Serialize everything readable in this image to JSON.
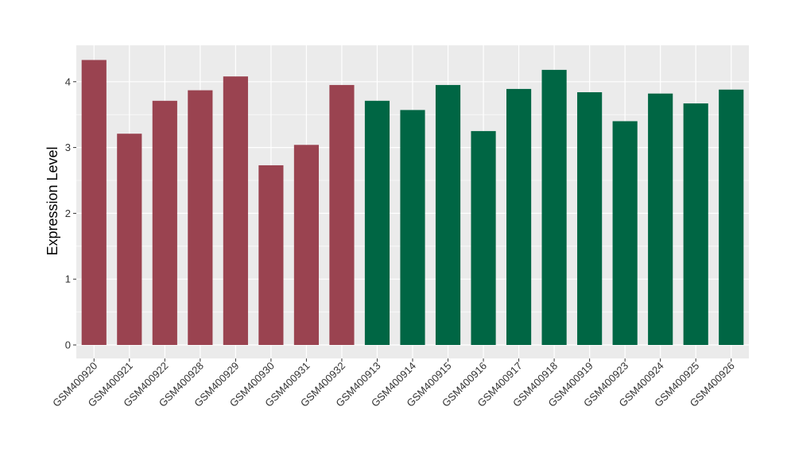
{
  "chart_data": {
    "type": "bar",
    "title": "",
    "xlabel": "",
    "ylabel": "Expression Level",
    "ylim": [
      0,
      4.5
    ],
    "yticks": [
      0,
      1,
      2,
      3,
      4
    ],
    "grid": true,
    "legend": "none",
    "colors": {
      "group1": "#9a4350",
      "group2": "#006644",
      "panel": "#ebebeb",
      "grid": "#ffffff"
    },
    "categories": [
      "GSM400920",
      "GSM400921",
      "GSM400922",
      "GSM400928",
      "GSM400929",
      "GSM400930",
      "GSM400931",
      "GSM400932",
      "GSM400913",
      "GSM400914",
      "GSM400915",
      "GSM400916",
      "GSM400917",
      "GSM400918",
      "GSM400919",
      "GSM400923",
      "GSM400924",
      "GSM400925",
      "GSM400926"
    ],
    "values": [
      4.33,
      3.21,
      3.71,
      3.87,
      4.08,
      2.73,
      3.04,
      3.95,
      3.71,
      3.57,
      3.95,
      3.25,
      3.89,
      4.18,
      3.84,
      3.4,
      3.82,
      3.67,
      3.88
    ],
    "groups": [
      "group1",
      "group1",
      "group1",
      "group1",
      "group1",
      "group1",
      "group1",
      "group1",
      "group2",
      "group2",
      "group2",
      "group2",
      "group2",
      "group2",
      "group2",
      "group2",
      "group2",
      "group2",
      "group2"
    ]
  }
}
